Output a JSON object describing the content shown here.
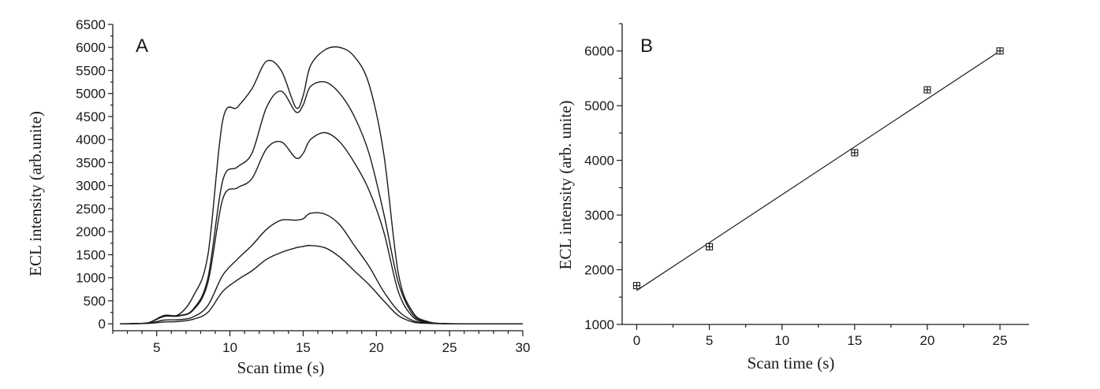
{
  "chart_data": [
    {
      "type": "line",
      "panel_label": "A",
      "xlabel": "Scan time (s)",
      "ylabel": "ECL intensity (arb.unite)",
      "xlim": [
        2,
        30
      ],
      "ylim": [
        -150,
        6500
      ],
      "xticks": [
        5,
        10,
        15,
        20,
        25,
        30
      ],
      "yticks": [
        0,
        500,
        1000,
        1500,
        2000,
        2500,
        3000,
        3500,
        4000,
        4500,
        5000,
        5500,
        6000,
        6500
      ],
      "series": [
        {
          "x": [
            2.5,
            3.5,
            4.5,
            5.5,
            6.5,
            7.5,
            8.5,
            9.5,
            10.5,
            11.5,
            12.5,
            13.5,
            14.5,
            15,
            15.5,
            16.5,
            17.5,
            18.5,
            19.5,
            20.5,
            21.5,
            22.5,
            23.5,
            24.5,
            26,
            30
          ],
          "y": [
            0,
            5,
            10,
            40,
            50,
            100,
            250,
            700,
            950,
            1150,
            1400,
            1550,
            1650,
            1680,
            1700,
            1650,
            1450,
            1150,
            850,
            500,
            180,
            40,
            10,
            5,
            0,
            0
          ]
        },
        {
          "x": [
            2.5,
            3.5,
            4.5,
            5.5,
            6.5,
            7.5,
            8.5,
            9.5,
            10.5,
            11.5,
            12.5,
            13.5,
            14.5,
            15,
            15.5,
            16.5,
            17.5,
            18.5,
            19.5,
            20.5,
            21.5,
            22.5,
            23.5,
            24.5,
            26,
            30
          ],
          "y": [
            0,
            5,
            15,
            80,
            90,
            150,
            400,
            1050,
            1400,
            1700,
            2050,
            2250,
            2250,
            2280,
            2400,
            2380,
            2150,
            1700,
            1250,
            700,
            280,
            70,
            15,
            5,
            0,
            0
          ]
        },
        {
          "x": [
            2.5,
            3.5,
            4.5,
            5.5,
            6.5,
            7.5,
            8.5,
            9.5,
            10.5,
            11.5,
            12.5,
            13.5,
            14.5,
            15,
            15.5,
            16.5,
            17.5,
            18.5,
            19.5,
            20.5,
            21.5,
            22.5,
            23.5,
            24.5,
            26,
            30
          ],
          "y": [
            0,
            5,
            30,
            160,
            170,
            300,
            900,
            2700,
            2950,
            3150,
            3800,
            3950,
            3600,
            3700,
            4000,
            4150,
            3950,
            3500,
            2900,
            2000,
            700,
            150,
            30,
            5,
            0,
            0
          ]
        },
        {
          "x": [
            2.5,
            3.5,
            4.5,
            5.5,
            6.5,
            7.5,
            8.5,
            9.5,
            10.5,
            11.5,
            12.5,
            13.5,
            14.5,
            15,
            15.5,
            16.5,
            17.5,
            18.5,
            19.5,
            20.5,
            21.5,
            22.5,
            23.5,
            24.5,
            26,
            30
          ],
          "y": [
            0,
            5,
            30,
            180,
            180,
            320,
            1000,
            3100,
            3400,
            3700,
            4700,
            5050,
            4600,
            4750,
            5150,
            5250,
            5000,
            4500,
            3700,
            2400,
            900,
            200,
            40,
            5,
            0,
            0
          ]
        },
        {
          "x": [
            2.5,
            3.5,
            4.5,
            5.5,
            6.5,
            7.5,
            8.5,
            9.5,
            10.5,
            11.5,
            12.5,
            13.5,
            14.5,
            15,
            15.5,
            16.5,
            17.5,
            18.5,
            19.5,
            20.5,
            21.5,
            22.5,
            23.5,
            24.5,
            26,
            30
          ],
          "y": [
            0,
            5,
            30,
            180,
            200,
            600,
            1500,
            4400,
            4700,
            5100,
            5700,
            5500,
            4700,
            4950,
            5600,
            5950,
            6000,
            5800,
            5200,
            3700,
            1100,
            250,
            50,
            5,
            0,
            0
          ]
        }
      ]
    },
    {
      "type": "scatter",
      "panel_label": "B",
      "xlabel": "Scan time (s)",
      "ylabel": "ECL intensity (arb. unite)",
      "xlim": [
        -1,
        27
      ],
      "ylim": [
        1000,
        6500
      ],
      "xticks": [
        0,
        5,
        10,
        15,
        20,
        25
      ],
      "yticks": [
        1000,
        2000,
        3000,
        4000,
        5000,
        6000
      ],
      "points": {
        "x": [
          0,
          5,
          15,
          20,
          25
        ],
        "y": [
          1710,
          2420,
          4140,
          5290,
          6000
        ]
      },
      "fit_line": {
        "x": [
          0,
          25
        ],
        "y": [
          1620,
          6000
        ]
      }
    }
  ]
}
